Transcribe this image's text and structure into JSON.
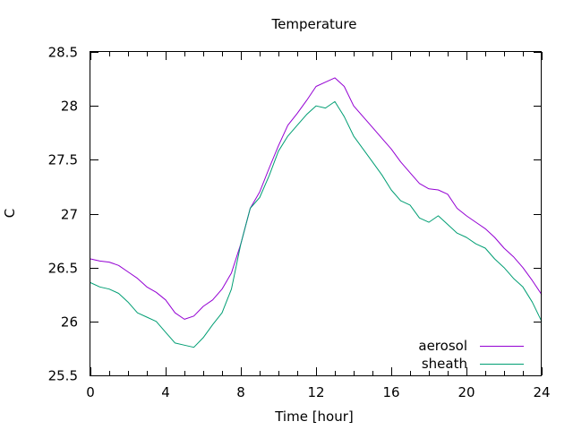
{
  "chart_data": {
    "type": "line",
    "title": "Temperature",
    "xlabel": "Time [hour]",
    "ylabel": "C",
    "xlim": [
      0,
      24
    ],
    "ylim": [
      25.5,
      28.5
    ],
    "xticks": [
      0,
      4,
      8,
      12,
      16,
      20,
      24
    ],
    "yticks": [
      25.5,
      26,
      26.5,
      27,
      27.5,
      28,
      28.5
    ],
    "grid": false,
    "legend_position": "bottom-right",
    "series": [
      {
        "name": "aerosol",
        "color": "#9400d3",
        "x": [
          0,
          0.5,
          1,
          1.5,
          2,
          2.5,
          3,
          3.5,
          4,
          4.5,
          5,
          5.5,
          6,
          6.5,
          7,
          7.5,
          8,
          8.5,
          9,
          9.5,
          10,
          10.5,
          11,
          11.5,
          12,
          12.5,
          13,
          13.5,
          14,
          14.5,
          15,
          15.5,
          16,
          16.5,
          17,
          17.5,
          18,
          18.5,
          19,
          19.5,
          20,
          20.5,
          21,
          21.5,
          22,
          22.5,
          23,
          23.5,
          24
        ],
        "y": [
          26.58,
          26.56,
          26.55,
          26.52,
          26.46,
          26.4,
          26.32,
          26.27,
          26.2,
          26.08,
          26.02,
          26.05,
          26.14,
          26.2,
          26.3,
          26.45,
          26.72,
          27.05,
          27.2,
          27.42,
          27.63,
          27.82,
          27.93,
          28.05,
          28.18,
          28.22,
          28.26,
          28.18,
          28.0,
          27.9,
          27.8,
          27.7,
          27.6,
          27.48,
          27.38,
          27.28,
          27.23,
          27.22,
          27.18,
          27.05,
          26.98,
          26.92,
          26.86,
          26.78,
          26.68,
          26.6,
          26.5,
          26.38,
          26.25
        ]
      },
      {
        "name": "sheath",
        "color": "#009e73",
        "x": [
          0,
          0.5,
          1,
          1.5,
          2,
          2.5,
          3,
          3.5,
          4,
          4.5,
          5,
          5.5,
          6,
          6.5,
          7,
          7.5,
          8,
          8.5,
          9,
          9.5,
          10,
          10.5,
          11,
          11.5,
          12,
          12.5,
          13,
          13.5,
          14,
          14.5,
          15,
          15.5,
          16,
          16.5,
          17,
          17.5,
          18,
          18.5,
          19,
          19.5,
          20,
          20.5,
          21,
          21.5,
          22,
          22.5,
          23,
          23.5,
          24
        ],
        "y": [
          26.36,
          26.32,
          26.3,
          26.26,
          26.18,
          26.08,
          26.04,
          26.0,
          25.9,
          25.8,
          25.78,
          25.76,
          25.85,
          25.97,
          26.08,
          26.3,
          26.72,
          27.05,
          27.15,
          27.35,
          27.58,
          27.72,
          27.82,
          27.92,
          28.0,
          27.98,
          28.04,
          27.9,
          27.72,
          27.6,
          27.48,
          27.36,
          27.22,
          27.12,
          27.08,
          26.96,
          26.92,
          26.98,
          26.9,
          26.82,
          26.78,
          26.72,
          26.68,
          26.58,
          26.5,
          26.4,
          26.32,
          26.18,
          26.0
        ]
      }
    ]
  }
}
